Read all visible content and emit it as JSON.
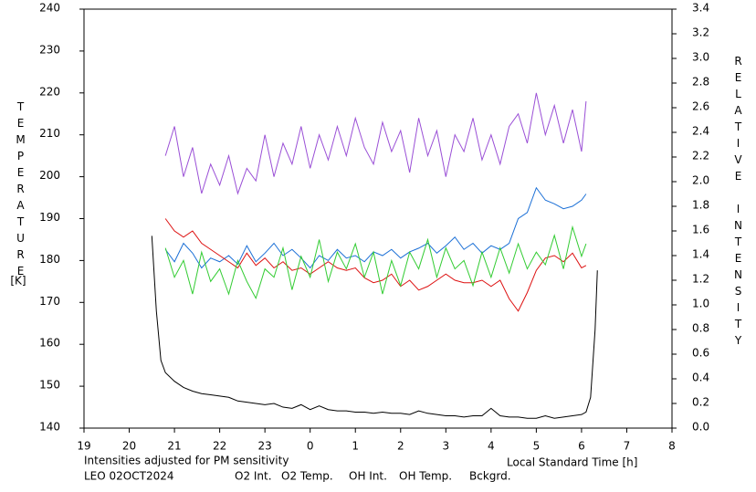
{
  "chart_data": {
    "type": "line",
    "ylabel": "TEMPERATURE",
    "yunit": "[K]",
    "y2label": "RELATIVE INTENSITY",
    "xlabel": "Local Standard Time [h]",
    "note": "Intensities adjusted for PM sensitivity",
    "note_color": "#22cc22",
    "station": "LEO 02OCT2024",
    "xlim": [
      19,
      32
    ],
    "xticks": [
      19,
      20,
      21,
      22,
      23,
      {
        "value": 24,
        "label": "0"
      },
      {
        "value": 25,
        "label": "1"
      },
      {
        "value": 26,
        "label": "2"
      },
      {
        "value": 27,
        "label": "3"
      },
      {
        "value": 28,
        "label": "4"
      },
      {
        "value": 29,
        "label": "5"
      },
      {
        "value": 30,
        "label": "6"
      },
      {
        "value": 31,
        "label": "7"
      },
      {
        "value": 32,
        "label": "8"
      }
    ],
    "ylim": [
      140,
      240
    ],
    "yticks": [
      140,
      150,
      160,
      170,
      180,
      190,
      200,
      210,
      220,
      230,
      240
    ],
    "y2lim": [
      0,
      3.4
    ],
    "y2ticks": [
      {
        "value": 0,
        "label": "0.0"
      },
      0.2,
      0.4,
      0.6,
      0.8,
      {
        "value": 1,
        "label": "1.0"
      },
      1.2,
      1.4,
      1.6,
      1.8,
      {
        "value": 2,
        "label": "2.0"
      },
      2.2,
      2.4,
      2.6,
      2.8,
      {
        "value": 3,
        "label": "3.0"
      },
      3.2,
      3.4
    ],
    "x": [
      20.5,
      20.6,
      20.7,
      20.8,
      21.0,
      21.2,
      21.4,
      21.6,
      21.8,
      22.0,
      22.2,
      22.4,
      22.6,
      22.8,
      23.0,
      23.2,
      23.4,
      23.6,
      23.8,
      24.0,
      24.2,
      24.4,
      24.6,
      24.8,
      25.0,
      25.2,
      25.4,
      25.6,
      25.8,
      26.0,
      26.2,
      26.4,
      26.6,
      26.8,
      27.0,
      27.2,
      27.4,
      27.6,
      27.8,
      28.0,
      28.2,
      28.4,
      28.6,
      28.8,
      29.0,
      29.2,
      29.4,
      29.6,
      29.8,
      30.0,
      30.1,
      30.2,
      30.3,
      30.35
    ],
    "series": [
      {
        "name": "O2 Int.",
        "color": "#1a6fd6",
        "axis": "y2",
        "values": [
          null,
          null,
          null,
          1.45,
          1.35,
          1.5,
          1.42,
          1.3,
          1.38,
          1.35,
          1.4,
          1.33,
          1.48,
          1.35,
          1.42,
          1.5,
          1.4,
          1.45,
          1.38,
          1.3,
          1.4,
          1.36,
          1.45,
          1.38,
          1.4,
          1.35,
          1.43,
          1.4,
          1.45,
          1.38,
          1.43,
          1.46,
          1.5,
          1.42,
          1.48,
          1.55,
          1.45,
          1.5,
          1.42,
          1.48,
          1.45,
          1.5,
          1.7,
          1.75,
          1.95,
          1.85,
          1.82,
          1.78,
          1.8,
          1.85,
          1.9,
          null,
          null,
          null
        ]
      },
      {
        "name": "O2 Temp.",
        "color": "#9a4fd6",
        "values": [
          null,
          null,
          null,
          205,
          212,
          200,
          207,
          196,
          203,
          198,
          205,
          196,
          202,
          199,
          210,
          200,
          208,
          203,
          212,
          202,
          210,
          204,
          212,
          205,
          214,
          207,
          203,
          213,
          206,
          211,
          201,
          214,
          205,
          211,
          200,
          210,
          206,
          214,
          204,
          210,
          203,
          212,
          215,
          208,
          220,
          210,
          217,
          208,
          216,
          206,
          218,
          null,
          null,
          null
        ]
      },
      {
        "name": "OH Int.",
        "color": "#dd1111",
        "axis": "y2",
        "values": [
          null,
          null,
          null,
          1.7,
          1.6,
          1.55,
          1.6,
          1.5,
          1.45,
          1.4,
          1.35,
          1.3,
          1.42,
          1.32,
          1.38,
          1.3,
          1.35,
          1.28,
          1.3,
          1.25,
          1.3,
          1.35,
          1.3,
          1.28,
          1.3,
          1.22,
          1.18,
          1.2,
          1.25,
          1.15,
          1.2,
          1.12,
          1.15,
          1.2,
          1.25,
          1.2,
          1.18,
          1.18,
          1.2,
          1.15,
          1.2,
          1.05,
          0.95,
          1.1,
          1.28,
          1.38,
          1.4,
          1.35,
          1.42,
          1.3,
          1.32,
          null,
          null,
          null
        ]
      },
      {
        "name": "OH Temp.",
        "color": "#33cc33",
        "values": [
          null,
          null,
          null,
          183,
          176,
          180,
          172,
          182,
          175,
          178,
          172,
          180,
          175,
          171,
          178,
          176,
          183,
          173,
          181,
          176,
          185,
          175,
          182,
          178,
          184,
          176,
          182,
          172,
          180,
          174,
          182,
          178,
          185,
          176,
          183,
          178,
          180,
          174,
          182,
          176,
          183,
          177,
          184,
          178,
          182,
          179,
          186,
          178,
          188,
          181,
          184,
          null,
          null,
          null
        ]
      },
      {
        "name": "Bckgrd.",
        "color": "#000000",
        "axis": "y2",
        "values": [
          1.56,
          0.95,
          0.55,
          0.45,
          0.38,
          0.33,
          0.3,
          0.28,
          0.27,
          0.26,
          0.25,
          0.22,
          0.21,
          0.2,
          0.19,
          0.2,
          0.17,
          0.16,
          0.19,
          0.15,
          0.18,
          0.15,
          0.14,
          0.14,
          0.13,
          0.13,
          0.12,
          0.13,
          0.12,
          0.12,
          0.11,
          0.14,
          0.12,
          0.11,
          0.1,
          0.1,
          0.09,
          0.1,
          0.1,
          0.16,
          0.1,
          0.09,
          0.09,
          0.08,
          0.08,
          0.1,
          0.08,
          0.09,
          0.1,
          0.11,
          0.13,
          0.25,
          0.8,
          1.28
        ]
      }
    ]
  }
}
